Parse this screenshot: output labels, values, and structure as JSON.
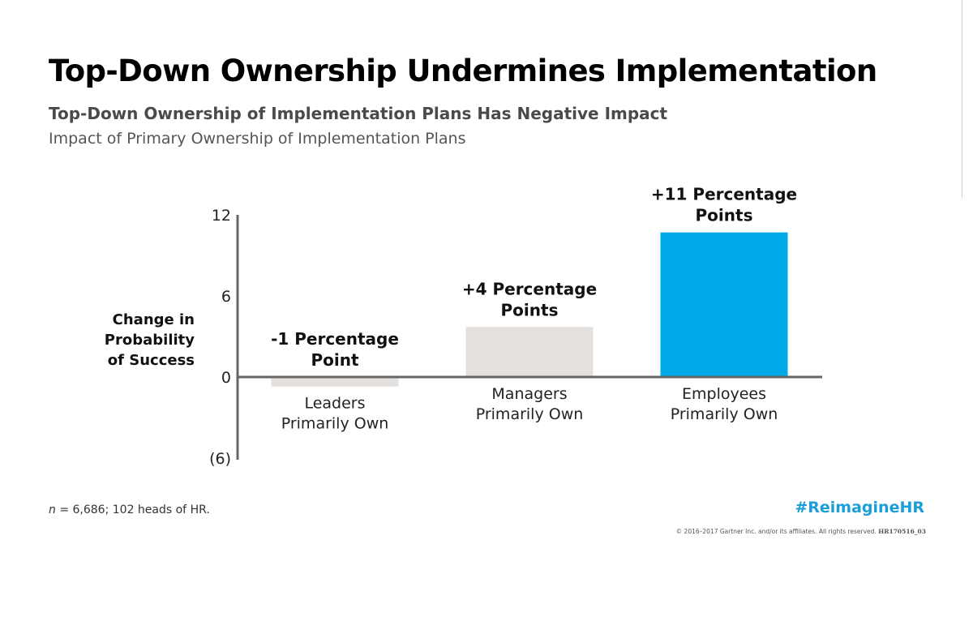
{
  "header": {
    "title": "Top-Down Ownership Undermines Implementation",
    "subtitle": "Top-Down Ownership of Implementation Plans Has Negative Impact",
    "subsubtitle": "Impact of Primary Ownership of Implementation Plans"
  },
  "footer": {
    "note_n": "n",
    "note_rest": " = 6,686; 102 heads of HR.",
    "hashtag": "#ReimagineHR",
    "copyright": "© 2016–2017 Gartner Inc. and/or its affiliates. All rights reserved.",
    "code": "HR170516_03"
  },
  "colors": {
    "neutral_bar": "#e3e0dd",
    "highlight_bar": "#00a9e8",
    "axis": "#666666",
    "hashtag": "#1a9ed9"
  },
  "chart_data": {
    "type": "bar",
    "title": "Top-Down Ownership Undermines Implementation",
    "ylabel_lines": [
      "Change in",
      "Probability",
      "of Success"
    ],
    "ylim": [
      -6,
      12
    ],
    "yticks": [
      {
        "value": 12,
        "label": "12"
      },
      {
        "value": 6,
        "label": "6"
      },
      {
        "value": 0,
        "label": "0"
      },
      {
        "value": -6,
        "label": "(6)"
      }
    ],
    "grid": false,
    "legend": "none",
    "categories": [
      {
        "lines": [
          "Leaders",
          "Primarily Own"
        ]
      },
      {
        "lines": [
          "Managers",
          "Primarily Own"
        ]
      },
      {
        "lines": [
          "Employees",
          "Primarily Own"
        ]
      }
    ],
    "values": [
      -0.7,
      3.7,
      10.7
    ],
    "data_labels": [
      [
        "-1 Percentage",
        "Point"
      ],
      [
        "+4 Percentage",
        "Points"
      ],
      [
        "+11 Percentage",
        "Points"
      ]
    ],
    "bar_colors": [
      "#e3e0dd",
      "#e3e0dd",
      "#00a9e8"
    ]
  }
}
